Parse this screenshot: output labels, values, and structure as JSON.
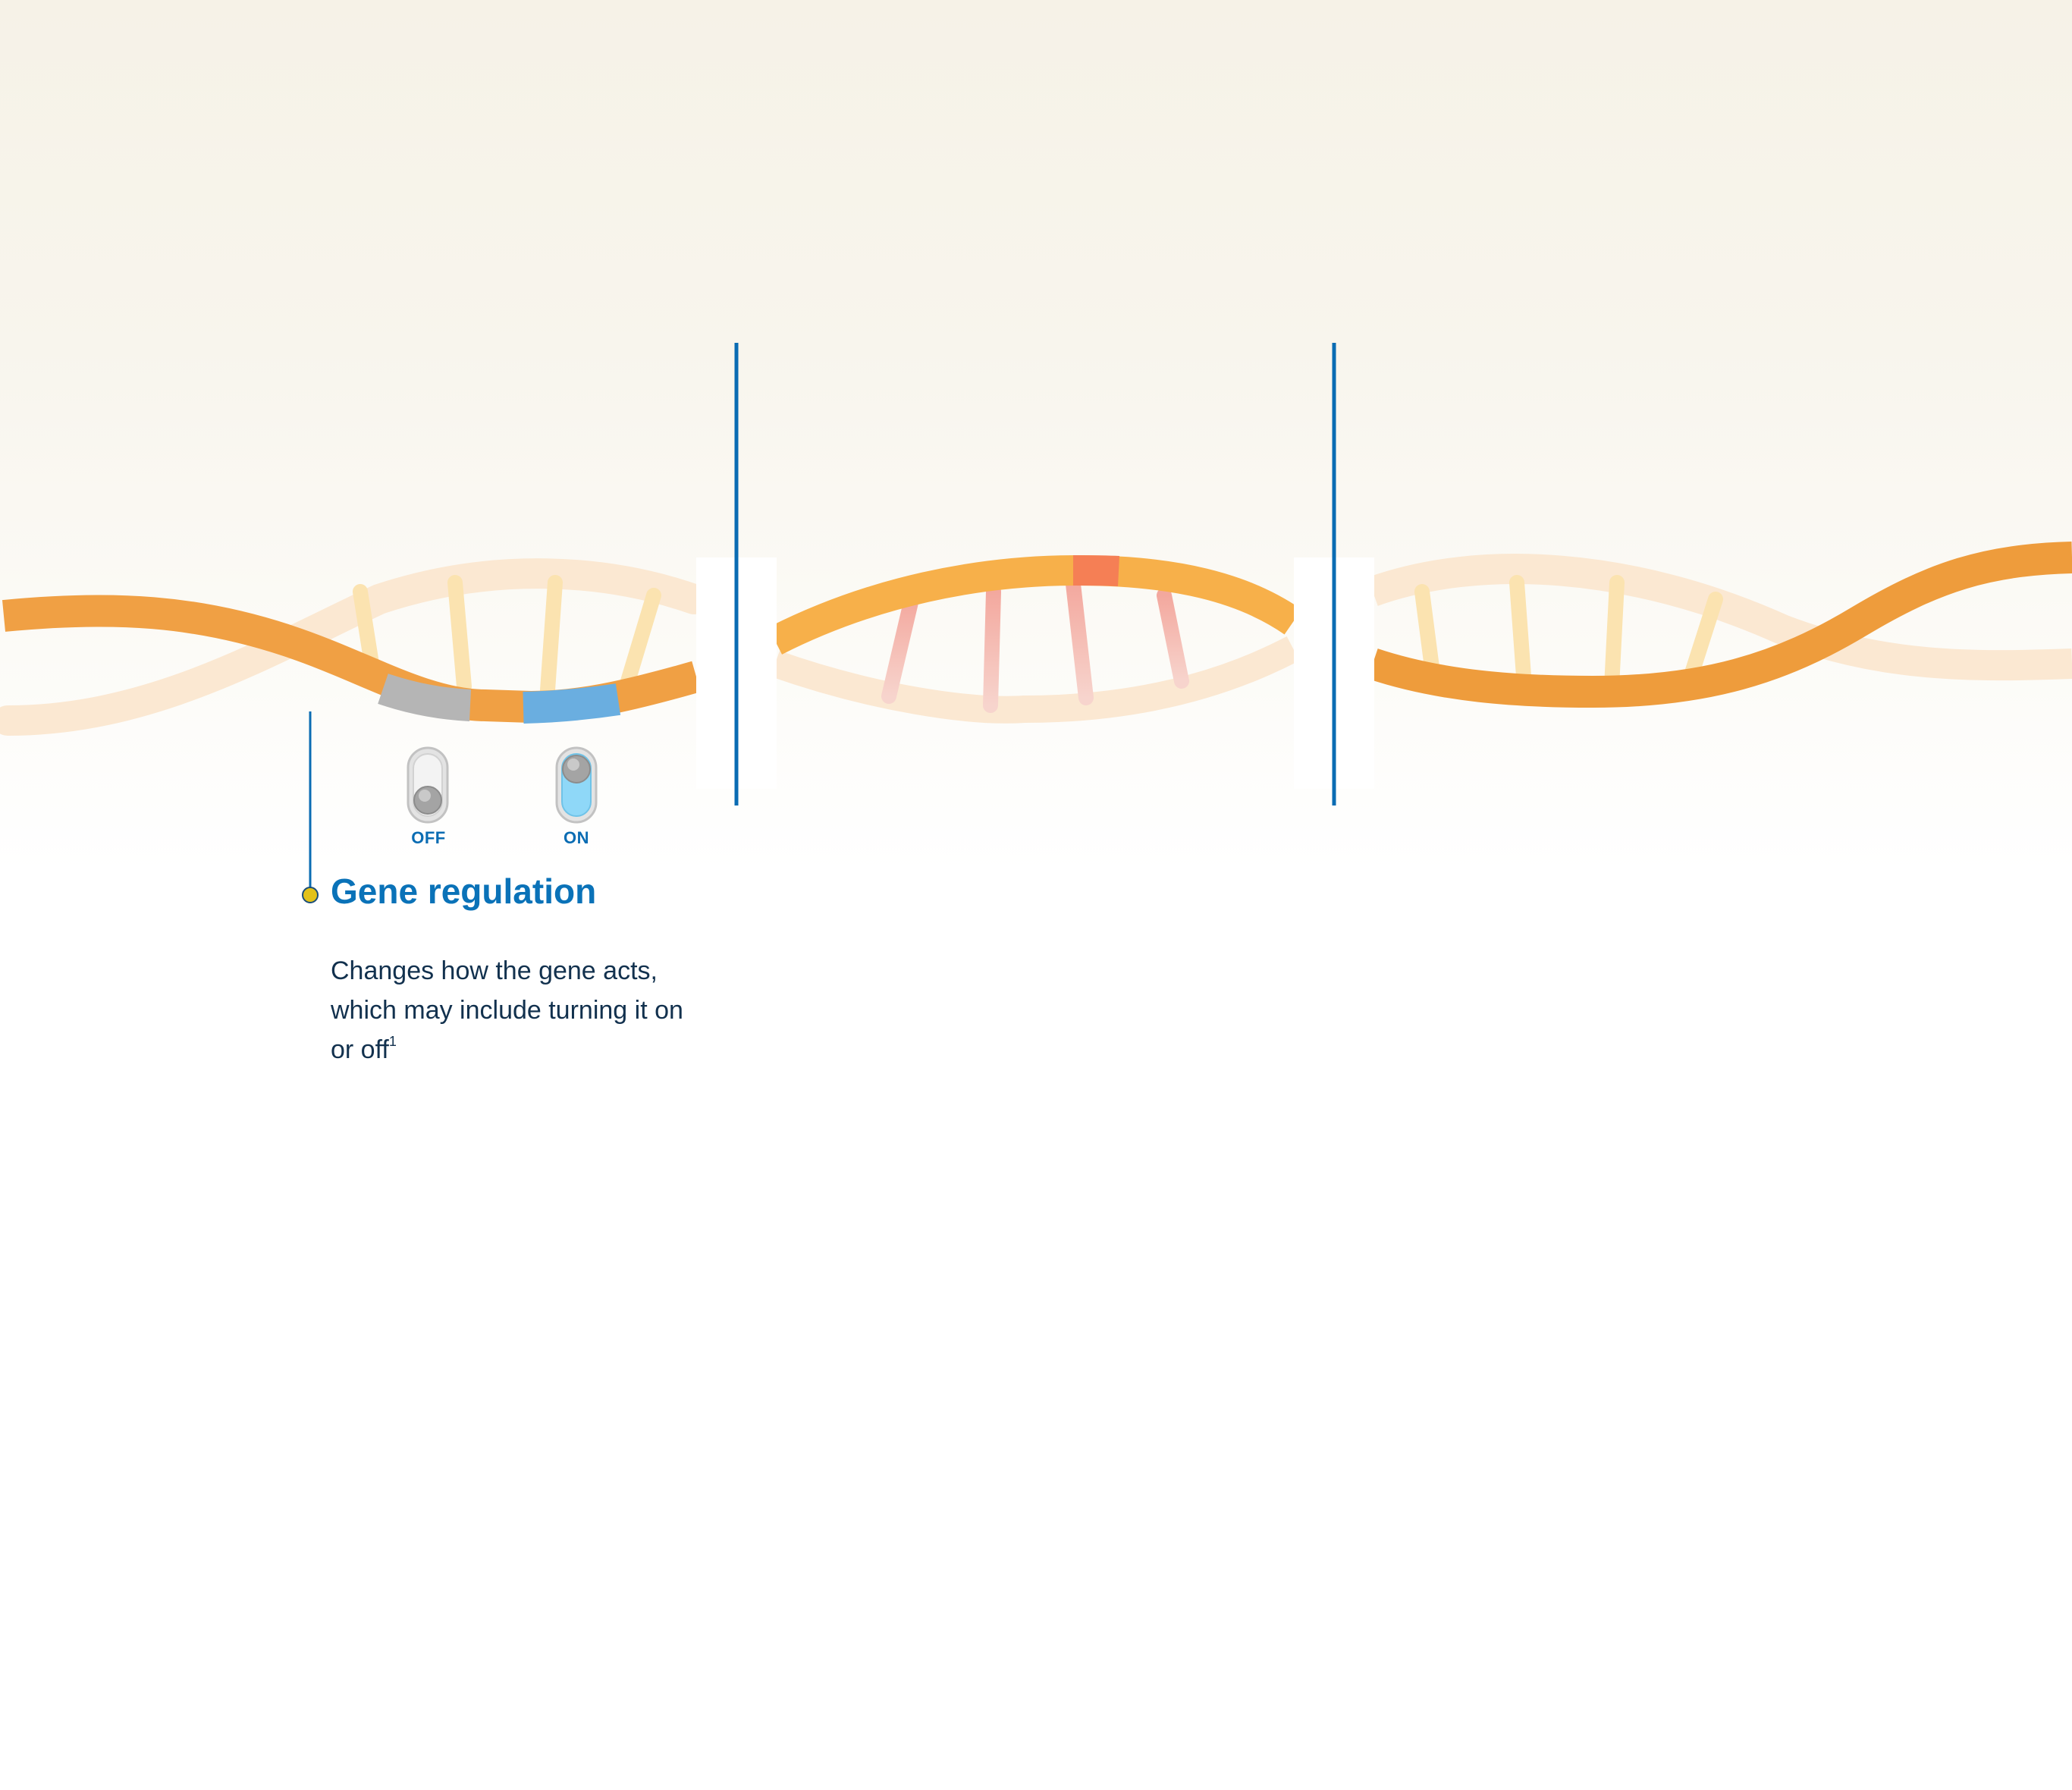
{
  "toggles": {
    "off_label": "OFF",
    "on_label": "ON"
  },
  "callout": {
    "title": "Gene regulation",
    "body": "Changes how the gene acts, which may include turning it on or off",
    "footnote": "1"
  },
  "colors": {
    "strand_front": "#f0a044",
    "strand_back": "#fbe8d2",
    "rung_faded": "#fbe3b0",
    "rung_pink": "#f3b7ae",
    "segment_off": "#b5b5b5",
    "segment_on": "#6aaee0",
    "segment_highlight": "#f57f55",
    "divider": "#0a6cb3",
    "dot": "#e2c21a",
    "title": "#0a72b8",
    "body_text": "#12314e"
  }
}
